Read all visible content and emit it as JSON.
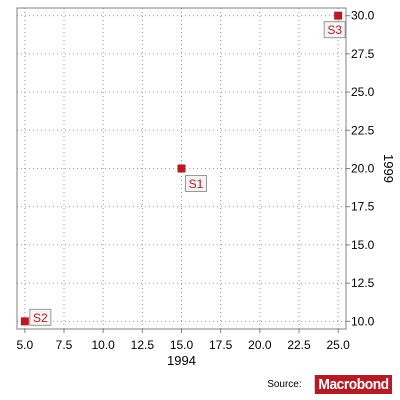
{
  "colors": {
    "marker": "#b31b25",
    "grid": "#9a9a9a",
    "frame": "#808080"
  },
  "footer": {
    "source_label": "Source:",
    "brand": "Macrobond"
  },
  "chart_data": {
    "type": "scatter",
    "xlabel": "1994",
    "ylabel": "1999",
    "xlim": [
      4.5,
      25.5
    ],
    "ylim": [
      9.5,
      30.5
    ],
    "x_ticks": [
      "5.0",
      "7.5",
      "10.0",
      "12.5",
      "15.0",
      "17.5",
      "20.0",
      "22.5",
      "25.0"
    ],
    "y_ticks": [
      "10.0",
      "12.5",
      "15.0",
      "17.5",
      "20.0",
      "22.5",
      "25.0",
      "27.5",
      "30.0"
    ],
    "y_axis_position": "right",
    "grid": true,
    "points": [
      {
        "label": "S1",
        "x": 15,
        "y": 20,
        "label_position": "below-right"
      },
      {
        "label": "S2",
        "x": 5,
        "y": 10,
        "label_position": "right"
      },
      {
        "label": "S3",
        "x": 25,
        "y": 30,
        "label_position": "below-left"
      }
    ]
  }
}
